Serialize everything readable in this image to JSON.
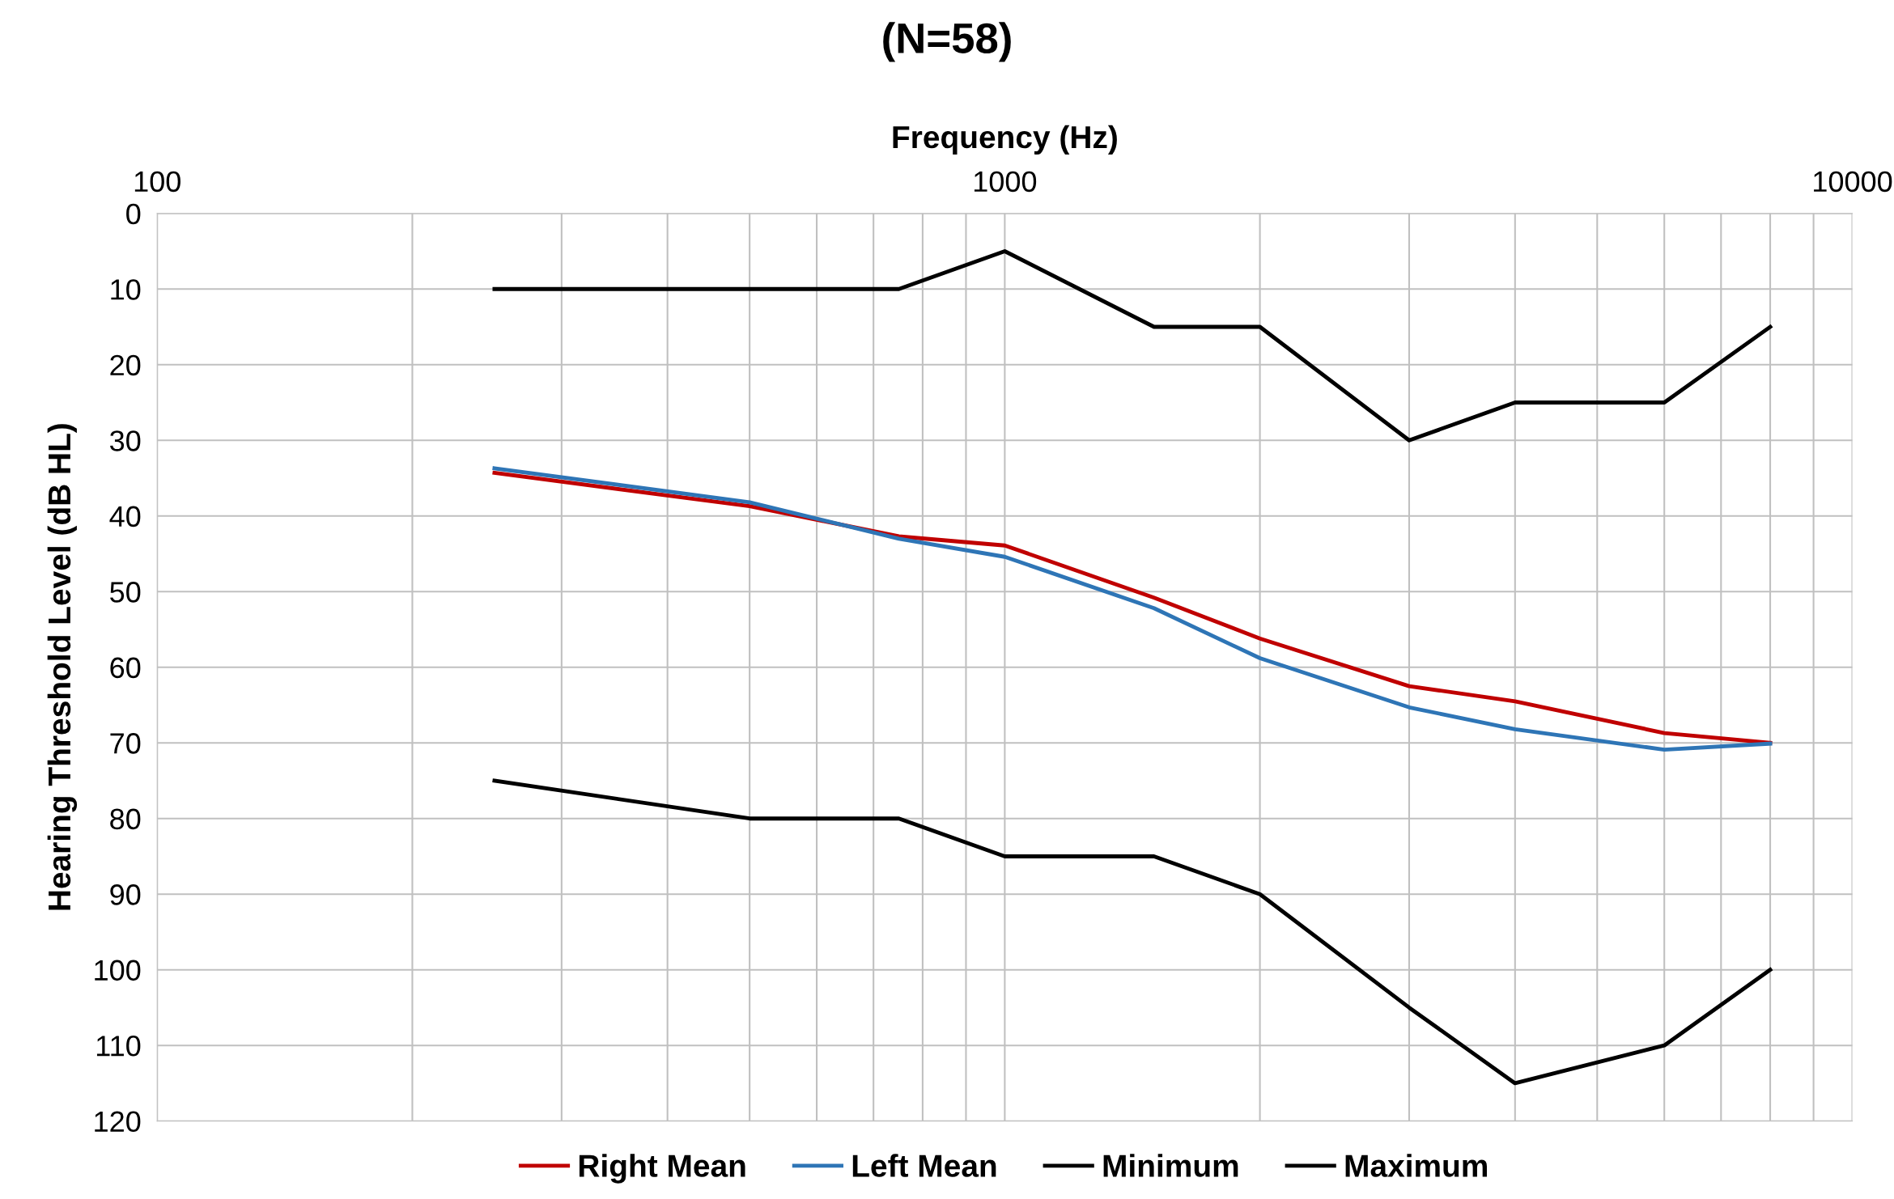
{
  "chart_data": {
    "type": "line",
    "title": "(N=58)",
    "xlabel": "Frequency (Hz)",
    "ylabel": "Hearing Threshold Level (dB HL)",
    "x": [
      250,
      500,
      750,
      1000,
      1500,
      2000,
      3000,
      4000,
      6000,
      8000
    ],
    "series": [
      {
        "name": "Right Mean",
        "color": "#c00000",
        "values": [
          34.3,
          38.7,
          42.7,
          43.9,
          50.8,
          56.2,
          62.5,
          64.5,
          68.7,
          70.0
        ]
      },
      {
        "name": "Left Mean",
        "color": "#2e75b6",
        "values": [
          33.7,
          38.2,
          43.0,
          45.4,
          52.2,
          58.8,
          65.3,
          68.2,
          70.9,
          70.1
        ]
      },
      {
        "name": "Minimum",
        "color": "#000000",
        "values": [
          10,
          10,
          10,
          5,
          15,
          15,
          30,
          25,
          25,
          15
        ]
      },
      {
        "name": "Maximum",
        "color": "#000000",
        "values": [
          75,
          80,
          80,
          85,
          85,
          90,
          105,
          115,
          110,
          100
        ]
      }
    ],
    "log": "x",
    "xlim": [
      100,
      10000
    ],
    "xticks": [
      100,
      {
        "value": 200,
        "label": null
      },
      {
        "value": 300,
        "label": null
      },
      {
        "value": 400,
        "label": null
      },
      {
        "value": 500,
        "label": null
      },
      {
        "value": 600,
        "label": null
      },
      {
        "value": 700,
        "label": null
      },
      {
        "value": 800,
        "label": null
      },
      {
        "value": 900,
        "label": null
      },
      1000,
      {
        "value": 2000,
        "label": null
      },
      {
        "value": 3000,
        "label": null
      },
      {
        "value": 4000,
        "label": null
      },
      {
        "value": 5000,
        "label": null
      },
      {
        "value": 6000,
        "label": null
      },
      {
        "value": 7000,
        "label": null
      },
      {
        "value": 8000,
        "label": null
      },
      {
        "value": 9000,
        "label": null
      },
      10000
    ],
    "ylim": [
      120,
      0
    ],
    "yticks": [
      0,
      10,
      20,
      30,
      40,
      50,
      60,
      70,
      80,
      90,
      100,
      110,
      120
    ],
    "grid": true,
    "legend": "bottom",
    "marker": "none",
    "line_style": "solid"
  }
}
